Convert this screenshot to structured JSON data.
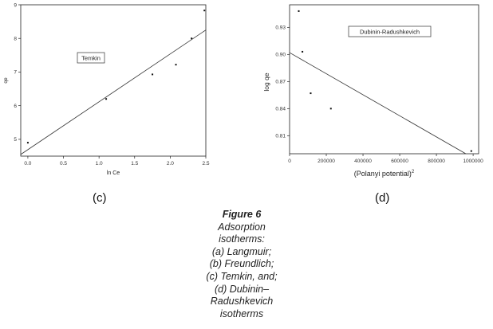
{
  "chart_data": [
    {
      "type": "scatter",
      "title": "",
      "xlabel": "ln Ce",
      "ylabel": "qe",
      "xlim": [
        -0.1,
        2.5
      ],
      "ylim": [
        4.5,
        9
      ],
      "xticks": [
        "0.0",
        "0.5",
        "1.0",
        "1.5",
        "2.0",
        "2.5"
      ],
      "xtick_values": [
        0,
        0.5,
        1.0,
        1.5,
        2.0,
        2.5
      ],
      "yticks": [
        "5",
        "6",
        "7",
        "8",
        "9"
      ],
      "ytick_values": [
        5,
        6,
        7,
        8,
        9
      ],
      "annotation": "Temkin",
      "grid": false,
      "series": [
        {
          "x": [
            0.0,
            1.1,
            1.75,
            2.08,
            2.3,
            2.48
          ],
          "y": [
            4.9,
            6.2,
            6.93,
            7.22,
            8.0,
            8.83
          ]
        }
      ],
      "fit_line": {
        "x": [
          -0.1,
          2.5
        ],
        "y": [
          4.55,
          8.25
        ]
      }
    },
    {
      "type": "scatter",
      "title": "",
      "xlabel": "(Polanyi potential)",
      "xlabel_superscript": "2",
      "ylabel": "log qe",
      "xlim": [
        0,
        1030000
      ],
      "ylim": [
        0.79,
        0.955
      ],
      "xticks": [
        "0",
        "200000",
        "400000",
        "600000",
        "800000",
        "1000000"
      ],
      "xtick_values": [
        0,
        200000,
        400000,
        600000,
        800000,
        1000000
      ],
      "yticks": [
        "0.81",
        "0.84",
        "0.87",
        "0.90",
        "0.93"
      ],
      "ytick_values": [
        0.81,
        0.84,
        0.87,
        0.9,
        0.93
      ],
      "annotation": "Dubinin-Radushkevich",
      "grid": false,
      "series": [
        {
          "x": [
            50000,
            70000,
            115000,
            225000,
            990000
          ],
          "y": [
            0.948,
            0.903,
            0.857,
            0.84,
            0.793
          ]
        }
      ],
      "fit_line": {
        "x": [
          0,
          960000
        ],
        "y": [
          0.902,
          0.79
        ]
      }
    }
  ],
  "panel_labels": [
    "(c)",
    "(d)"
  ],
  "caption": {
    "title": "Figure 6",
    "lines": [
      "Adsorption",
      "isotherms:",
      "(a) Langmuir;",
      "(b) Freundlich;",
      "(c) Temkin, and;",
      "(d) Dubinin–",
      "Radushkevich",
      "isotherms"
    ]
  }
}
